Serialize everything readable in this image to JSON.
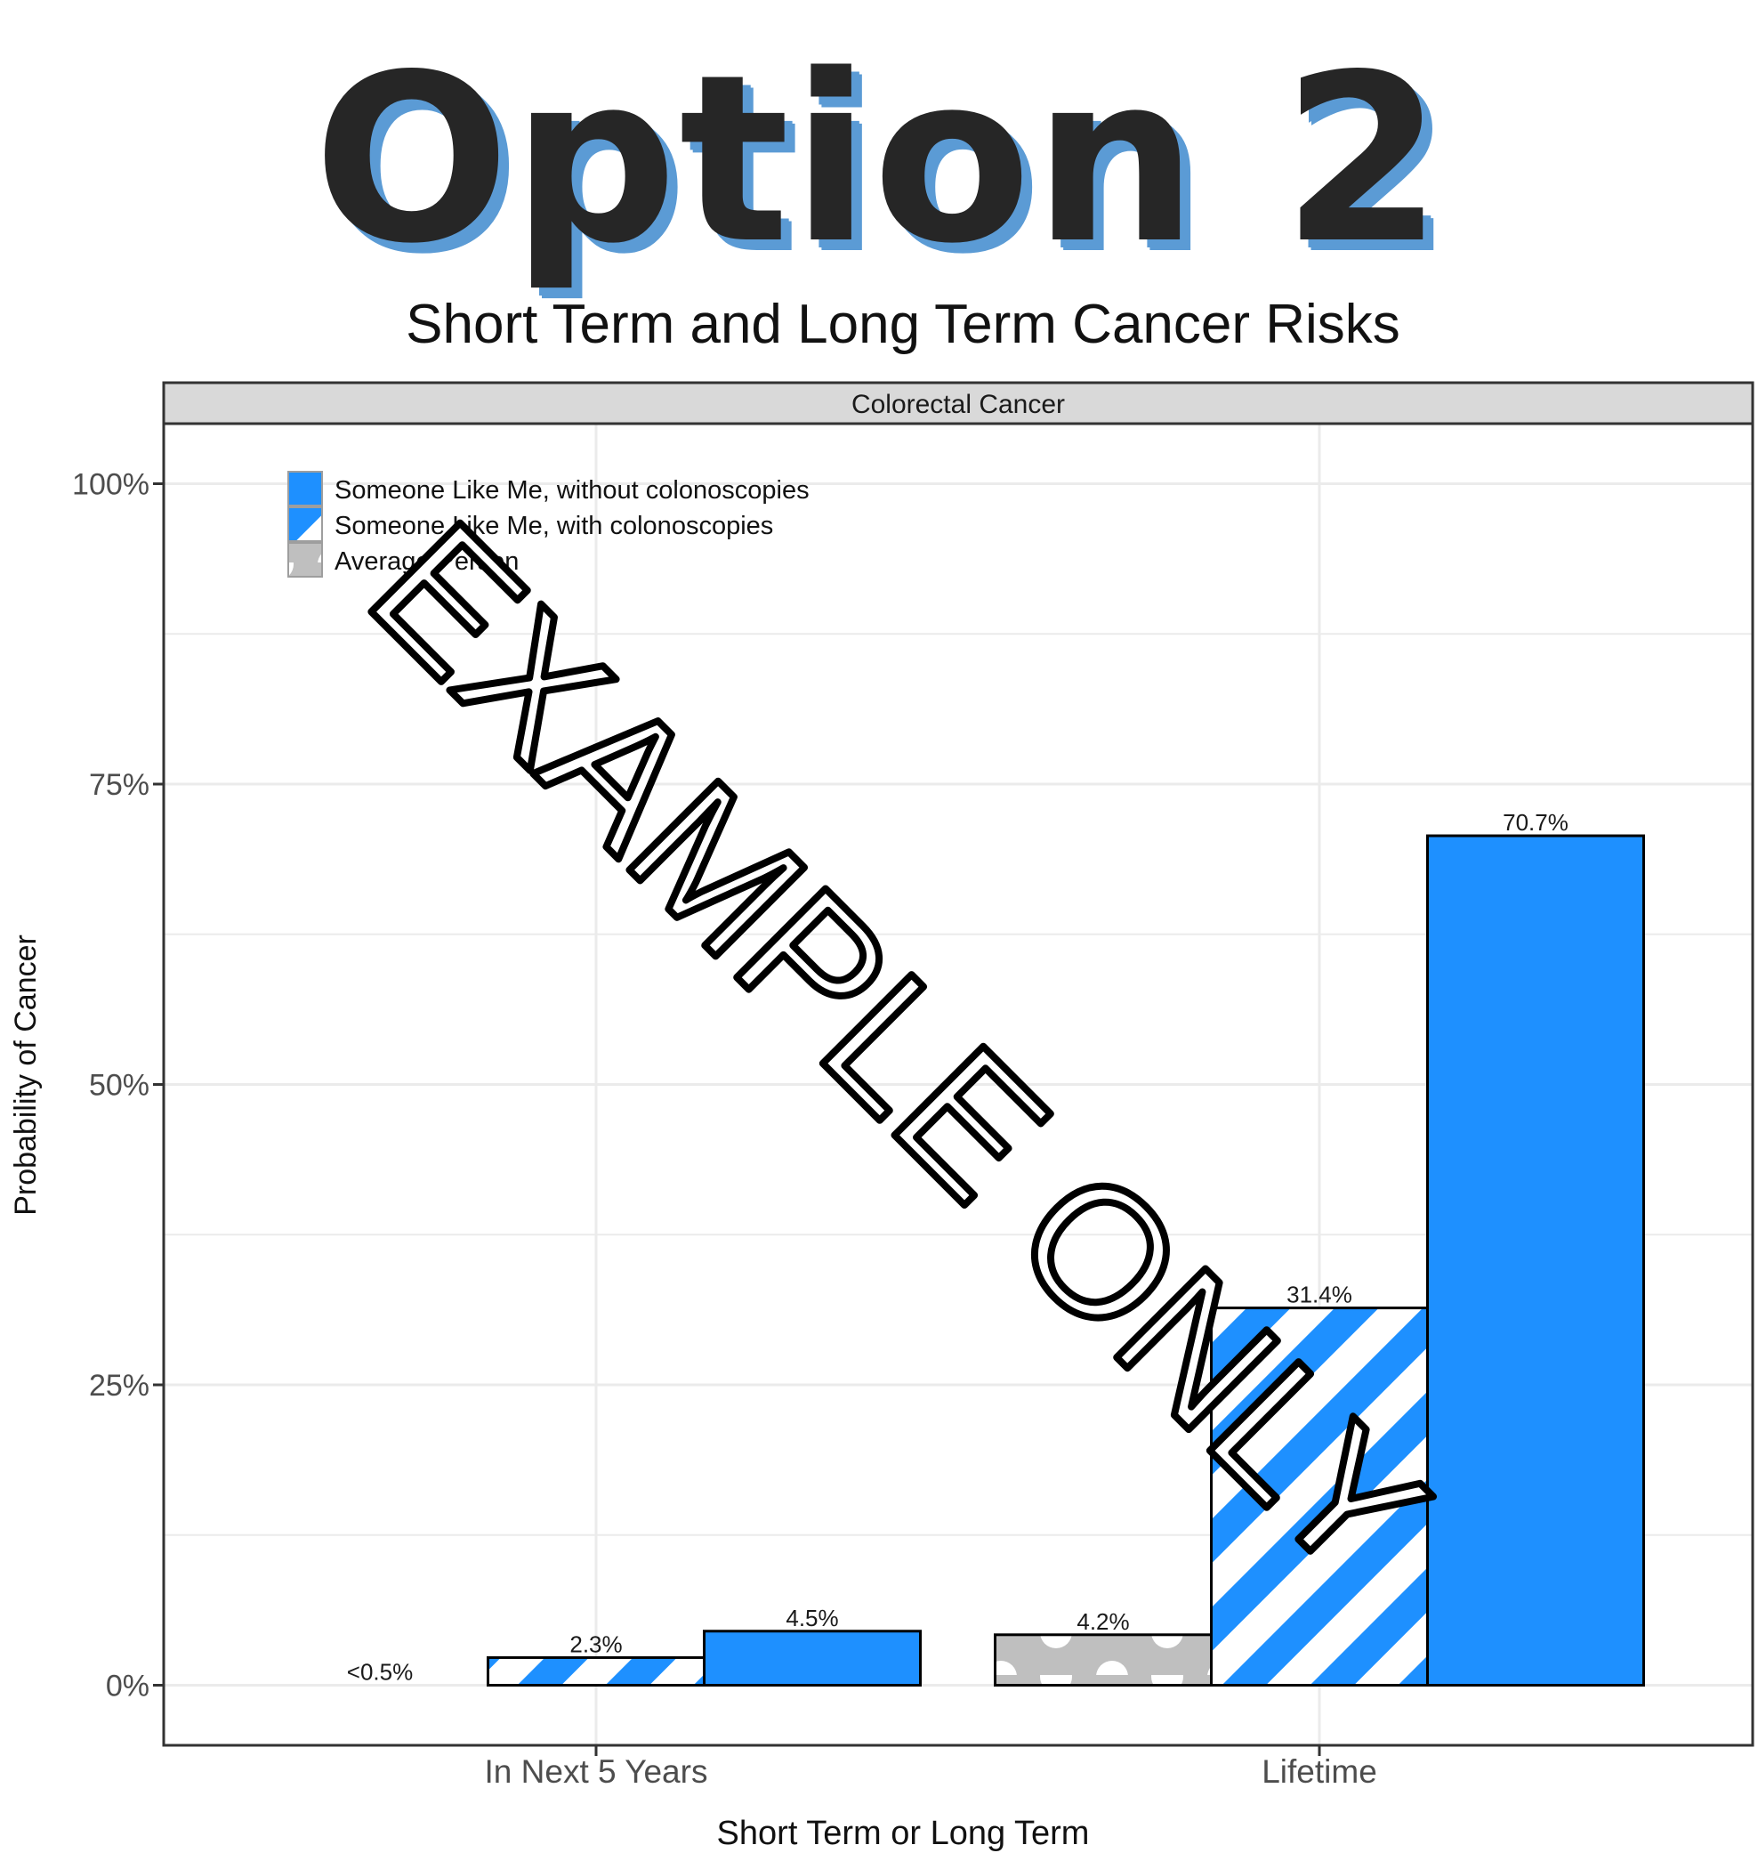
{
  "heading": "Option 2",
  "watermark": "EXAMPLE ONLY",
  "colors": {
    "blue": "#1e90ff",
    "gray": "#bfbfbf",
    "strip": "#d9d9d9",
    "grid": "#ebebeb"
  },
  "chart_data": {
    "type": "bar",
    "title": "Short Term and Long Term Cancer Risks",
    "facet_label": "Colorectal Cancer",
    "xlabel": "Short Term or Long Term",
    "ylabel": "Probability of Cancer",
    "ylim": [
      -5,
      105
    ],
    "yticks": [
      0,
      25,
      50,
      75,
      100
    ],
    "ytick_labels": [
      "0%",
      "25%",
      "50%",
      "75%",
      "100%"
    ],
    "grid": true,
    "legend_position": "top-left",
    "categories": [
      "In Next 5 Years",
      "Lifetime"
    ],
    "series": [
      {
        "name": "Average Person",
        "pattern": "dots",
        "values": [
          0,
          4.2
        ],
        "labels": [
          "<0.5%",
          "4.2%"
        ]
      },
      {
        "name": "Someone Like Me, with colonoscopies",
        "pattern": "stripes",
        "values": [
          2.3,
          31.4
        ],
        "labels": [
          "2.3%",
          "31.4%"
        ]
      },
      {
        "name": "Someone Like Me, without colonoscopies",
        "pattern": "solid",
        "values": [
          4.5,
          70.7
        ],
        "labels": [
          "4.5%",
          "70.7%"
        ]
      }
    ],
    "legend_order": [
      2,
      1,
      0
    ]
  }
}
